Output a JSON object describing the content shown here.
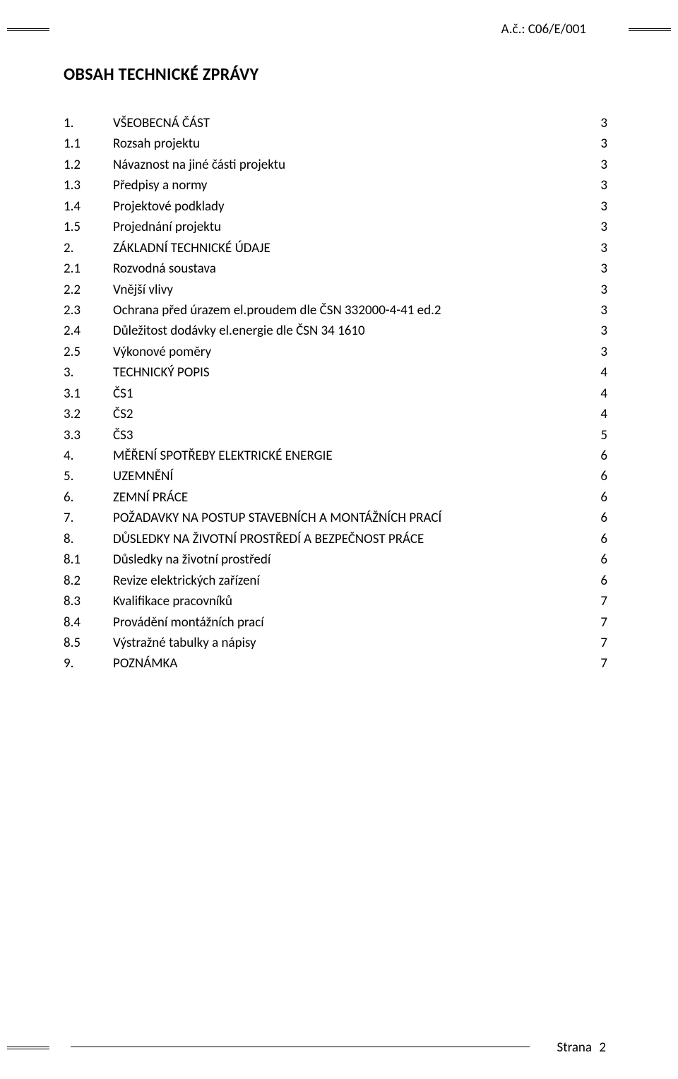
{
  "header": {
    "doc_ref": "A.č.: C06/E/001"
  },
  "title": "OBSAH TECHNICKÉ ZPRÁVY",
  "toc": [
    {
      "num": "1.",
      "label": "VŠEOBECNÁ ČÁST",
      "page": "3"
    },
    {
      "num": "1.1",
      "label": "Rozsah projektu",
      "page": "3"
    },
    {
      "num": "1.2",
      "label": "Návaznost na jiné části projektu",
      "page": "3"
    },
    {
      "num": "1.3",
      "label": "Předpisy a normy",
      "page": "3"
    },
    {
      "num": "1.4",
      "label": "Projektové podklady",
      "page": "3"
    },
    {
      "num": "1.5",
      "label": "Projednání projektu",
      "page": "3"
    },
    {
      "num": "2.",
      "label": "ZÁKLADNÍ TECHNICKÉ ÚDAJE",
      "page": "3"
    },
    {
      "num": "2.1",
      "label": "Rozvodná soustava",
      "page": "3"
    },
    {
      "num": "2.2",
      "label": "Vnější vlivy",
      "page": "3"
    },
    {
      "num": "2.3",
      "label": "Ochrana před úrazem el.proudem dle ČSN 332000-4-41 ed.2",
      "page": "3"
    },
    {
      "num": "2.4",
      "label": "Důležitost dodávky el.energie dle ČSN 34 1610",
      "page": "3"
    },
    {
      "num": "2.5",
      "label": "Výkonové poměry",
      "page": "3"
    },
    {
      "num": "3.",
      "label": "TECHNICKÝ POPIS",
      "page": "4"
    },
    {
      "num": "3.1",
      "label": "ČS1",
      "page": "4"
    },
    {
      "num": "3.2",
      "label": "ČS2",
      "page": "4"
    },
    {
      "num": "3.3",
      "label": "ČS3",
      "page": "5"
    },
    {
      "num": "4.",
      "label": "MĚŘENÍ  SPOTŘEBY ELEKTRICKÉ ENERGIE",
      "page": "6"
    },
    {
      "num": "5.",
      "label": "UZEMNĚNÍ",
      "page": "6"
    },
    {
      "num": "6.",
      "label": "ZEMNÍ PRÁCE",
      "page": "6"
    },
    {
      "num": "7.",
      "label": "POŽADAVKY NA POSTUP STAVEBNÍCH A MONTÁŽNÍCH PRACÍ",
      "page": "6"
    },
    {
      "num": "8.",
      "label": "DŮSLEDKY NA ŽIVOTNÍ PROSTŘEDÍ A BEZPEČNOST PRÁCE",
      "page": "6"
    },
    {
      "num": "8.1",
      "label": "Důsledky na životní prostředí",
      "page": "6"
    },
    {
      "num": "8.2",
      "label": "Revize elektrických zařízení",
      "page": "6"
    },
    {
      "num": "8.3",
      "label": "Kvalifikace pracovníků",
      "page": "7"
    },
    {
      "num": "8.4",
      "label": "Provádění montážních prací",
      "page": "7"
    },
    {
      "num": "8.5",
      "label": "Výstražné tabulky a nápisy",
      "page": "7"
    },
    {
      "num": "9.",
      "label": "POZNÁMKA",
      "page": "7"
    }
  ],
  "footer": {
    "label": "Strana",
    "page": "2"
  }
}
